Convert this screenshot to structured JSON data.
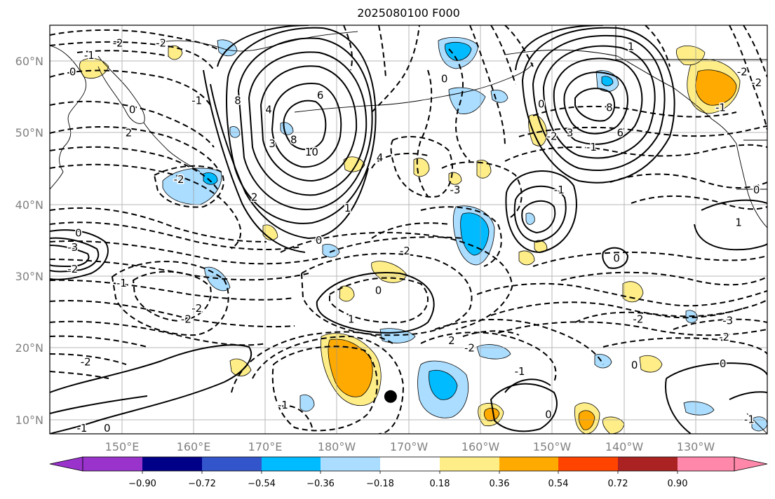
{
  "map": {
    "title": "2025080100 F000",
    "lat_labels": [
      "60°N",
      "50°N",
      "40°N",
      "30°N",
      "20°N",
      "10°N"
    ],
    "lon_labels": [
      "150°E",
      "160°E",
      "170°E",
      "180°W",
      "170°W",
      "160°W",
      "150°W",
      "140°W",
      "130°W"
    ],
    "lat_range": [
      8,
      65
    ],
    "lon_range": [
      140,
      240
    ],
    "marker": {
      "lon": -172.5,
      "lat": 13.2
    }
  },
  "colorbar": {
    "tick_labels": [
      "−0.90",
      "−0.72",
      "−0.54",
      "−0.36",
      "−0.18",
      "0.18",
      "0.36",
      "0.54",
      "0.72",
      "0.90"
    ],
    "colors": [
      "#9933cc",
      "#000088",
      "#3355cc",
      "#00bbff",
      "#aaddff",
      "#ffffff",
      "#ffee88",
      "#ffaa00",
      "#ff4400",
      "#aa2222",
      "#ff88aa"
    ]
  },
  "contour_labels": [
    {
      "t": "-2",
      "lon": 149.5,
      "lat": 62.5
    },
    {
      "t": "-2",
      "lon": 155.5,
      "lat": 62.5
    },
    {
      "t": "-1",
      "lon": 145.5,
      "lat": 60.8
    },
    {
      "t": "0",
      "lon": 143.2,
      "lat": 58.5
    },
    {
      "t": "-1",
      "lon": 160.5,
      "lat": 54.5
    },
    {
      "t": "0",
      "lon": 151.5,
      "lat": 53.2
    },
    {
      "t": "2",
      "lon": 151.0,
      "lat": 50.0
    },
    {
      "t": "8",
      "lon": 166.2,
      "lat": 54.5
    },
    {
      "t": "6",
      "lon": 177.7,
      "lat": 55.2
    },
    {
      "t": "4",
      "lon": 170.5,
      "lat": 53.2
    },
    {
      "t": "8",
      "lon": 174.0,
      "lat": 49.0
    },
    {
      "t": "10",
      "lon": 176.5,
      "lat": 47.3
    },
    {
      "t": "3",
      "lon": 171.0,
      "lat": 48.5
    },
    {
      "t": "2",
      "lon": 168.5,
      "lat": 41.0
    },
    {
      "t": "0",
      "lon": 177.5,
      "lat": 35.0
    },
    {
      "t": "4",
      "lon": 186.0,
      "lat": 46.5
    },
    {
      "t": "1",
      "lon": 181.5,
      "lat": 39.5
    },
    {
      "t": "-2",
      "lon": 158.0,
      "lat": 43.5
    },
    {
      "t": "0",
      "lon": 144.0,
      "lat": 36.0
    },
    {
      "t": "-3",
      "lon": 143.2,
      "lat": 34.0
    },
    {
      "t": "-2",
      "lon": 143.2,
      "lat": 31.0
    },
    {
      "t": "-1",
      "lon": 150.0,
      "lat": 29.0
    },
    {
      "t": "-2",
      "lon": 159.0,
      "lat": 24.0
    },
    {
      "t": "-2",
      "lon": 160.5,
      "lat": 25.5
    },
    {
      "t": "-2",
      "lon": 145.0,
      "lat": 18.0
    },
    {
      "t": "-1",
      "lon": 144.5,
      "lat": 8.8
    },
    {
      "t": "0",
      "lon": 148.0,
      "lat": 8.8
    },
    {
      "t": "-2",
      "lon": 189.5,
      "lat": 33.5
    },
    {
      "t": "0",
      "lon": 185.8,
      "lat": 28.0
    },
    {
      "t": "1",
      "lon": 182.0,
      "lat": 24.0
    },
    {
      "t": "-1",
      "lon": 172.5,
      "lat": 12.0
    },
    {
      "t": "-3",
      "lon": 196.5,
      "lat": 42.0
    },
    {
      "t": "2",
      "lon": 196.0,
      "lat": 21.0
    },
    {
      "t": "-2",
      "lon": 198.5,
      "lat": 20.0
    },
    {
      "t": "-1",
      "lon": 205.5,
      "lat": 16.7
    },
    {
      "t": "0",
      "lon": 209.5,
      "lat": 10.7
    },
    {
      "t": "0",
      "lon": 195.0,
      "lat": 57.5
    },
    {
      "t": "0",
      "lon": 208.5,
      "lat": 54.0
    },
    {
      "t": "-1",
      "lon": 211.0,
      "lat": 42.0
    },
    {
      "t": "0",
      "lon": 219.0,
      "lat": 32.5
    },
    {
      "t": "-2",
      "lon": 210.0,
      "lat": 49.5
    },
    {
      "t": "3",
      "lon": 212.5,
      "lat": 50.0
    },
    {
      "t": "6",
      "lon": 219.5,
      "lat": 50.0
    },
    {
      "t": "8",
      "lon": 218.0,
      "lat": 53.5
    },
    {
      "t": "-1",
      "lon": 215.5,
      "lat": 48.0
    },
    {
      "t": "-2",
      "lon": 222.0,
      "lat": 24.0
    },
    {
      "t": "-3",
      "lon": 234.5,
      "lat": 23.8
    },
    {
      "t": "-2",
      "lon": 234.0,
      "lat": 21.5
    },
    {
      "t": "0",
      "lon": 221.5,
      "lat": 17.6
    },
    {
      "t": "0",
      "lon": 233.8,
      "lat": 17.8
    },
    {
      "t": "1",
      "lon": 221.0,
      "lat": 62.0
    },
    {
      "t": "-2",
      "lon": 236.5,
      "lat": 58.5
    },
    {
      "t": "-2",
      "lon": 238.5,
      "lat": 57.0
    },
    {
      "t": "-1",
      "lon": 233.5,
      "lat": 53.5
    },
    {
      "t": "0",
      "lon": 238.5,
      "lat": 42.0
    },
    {
      "t": "-1",
      "lon": 237.5,
      "lat": 10.0
    },
    {
      "t": "1",
      "lon": 236.0,
      "lat": 37.5
    }
  ]
}
